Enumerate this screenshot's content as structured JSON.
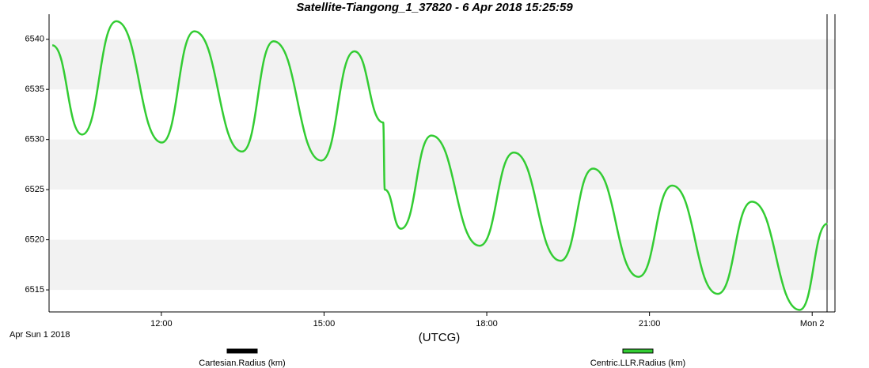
{
  "chart_data": {
    "type": "line",
    "title": "Satellite-Tiangong_1_37820 -  6 Apr 2018 15:25:59",
    "x_label": "(UTCG)",
    "start_label": "Apr Sun 1 2018",
    "x": [
      9.99,
      10.54,
      11.17,
      12.01,
      12.61,
      13.49,
      14.07,
      14.95,
      15.56,
      16.09,
      16.12,
      16.42,
      16.98,
      17.87,
      18.5,
      19.36,
      19.96,
      20.8,
      21.42,
      22.26,
      22.89,
      23.77,
      24.28
    ],
    "series": [
      {
        "name": "Cartesian.Radius (km)",
        "color": "#000000",
        "values": [
          null,
          null,
          null,
          null,
          null,
          null,
          null,
          null,
          null,
          null,
          null,
          null,
          null,
          null,
          null,
          null,
          null,
          null,
          null,
          null,
          null,
          null,
          null
        ]
      },
      {
        "name": "Centric.LLR.Radius (km)",
        "color": "#33cc33",
        "values": [
          6539.4,
          6530.5,
          6541.8,
          6529.7,
          6540.8,
          6528.8,
          6539.8,
          6527.9,
          6538.8,
          6531.7,
          6525.0,
          6521.1,
          6530.4,
          6519.4,
          6528.7,
          6517.9,
          6527.1,
          6516.3,
          6525.4,
          6514.6,
          6523.8,
          6513.0,
          6521.6
        ]
      }
    ],
    "xlim": [
      9.93,
      24.42
    ],
    "xticks": [
      {
        "value": 12,
        "label": "12:00"
      },
      {
        "value": 15,
        "label": "15:00"
      },
      {
        "value": 18,
        "label": "18:00"
      },
      {
        "value": 21,
        "label": "21:00"
      },
      {
        "value": 24,
        "label": "Mon 2"
      }
    ],
    "ylim": [
      6512.8,
      6542.5
    ],
    "yticks": [
      6515,
      6520,
      6525,
      6530,
      6535,
      6540
    ],
    "grid": "bands",
    "legend": "bottom"
  }
}
